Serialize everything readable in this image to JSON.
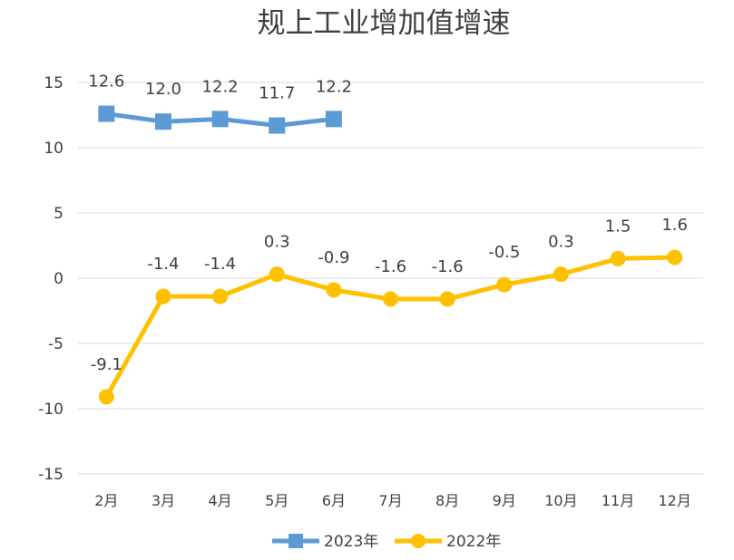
{
  "chart_data": {
    "type": "line",
    "title": "规上工业增加值增速",
    "xlabel": "",
    "ylabel": "",
    "categories": [
      "2月",
      "3月",
      "4月",
      "5月",
      "6月",
      "7月",
      "8月",
      "9月",
      "10月",
      "11月",
      "12月"
    ],
    "ylim": [
      -15,
      15
    ],
    "yticks": [
      15,
      10,
      5,
      0,
      -5,
      -10,
      -15
    ],
    "grid": true,
    "legend": "bottom",
    "series": [
      {
        "name": "2023年",
        "color": "#5b9bd5",
        "marker": "square",
        "values": [
          12.6,
          12.0,
          12.2,
          11.7,
          12.2,
          null,
          null,
          null,
          null,
          null,
          null
        ],
        "labels": [
          "12.6",
          "12.0",
          "12.2",
          "11.7",
          "12.2",
          null,
          null,
          null,
          null,
          null,
          null
        ]
      },
      {
        "name": "2022年",
        "color": "#ffc000",
        "marker": "circle",
        "values": [
          -9.1,
          -1.4,
          -1.4,
          0.3,
          -0.9,
          -1.6,
          -1.6,
          -0.5,
          0.3,
          1.5,
          1.6
        ],
        "labels": [
          "-9.1",
          "-1.4",
          "-1.4",
          "0.3",
          "-0.9",
          "-1.6",
          "-1.6",
          "-0.5",
          "0.3",
          "1.5",
          "1.6"
        ]
      }
    ]
  }
}
